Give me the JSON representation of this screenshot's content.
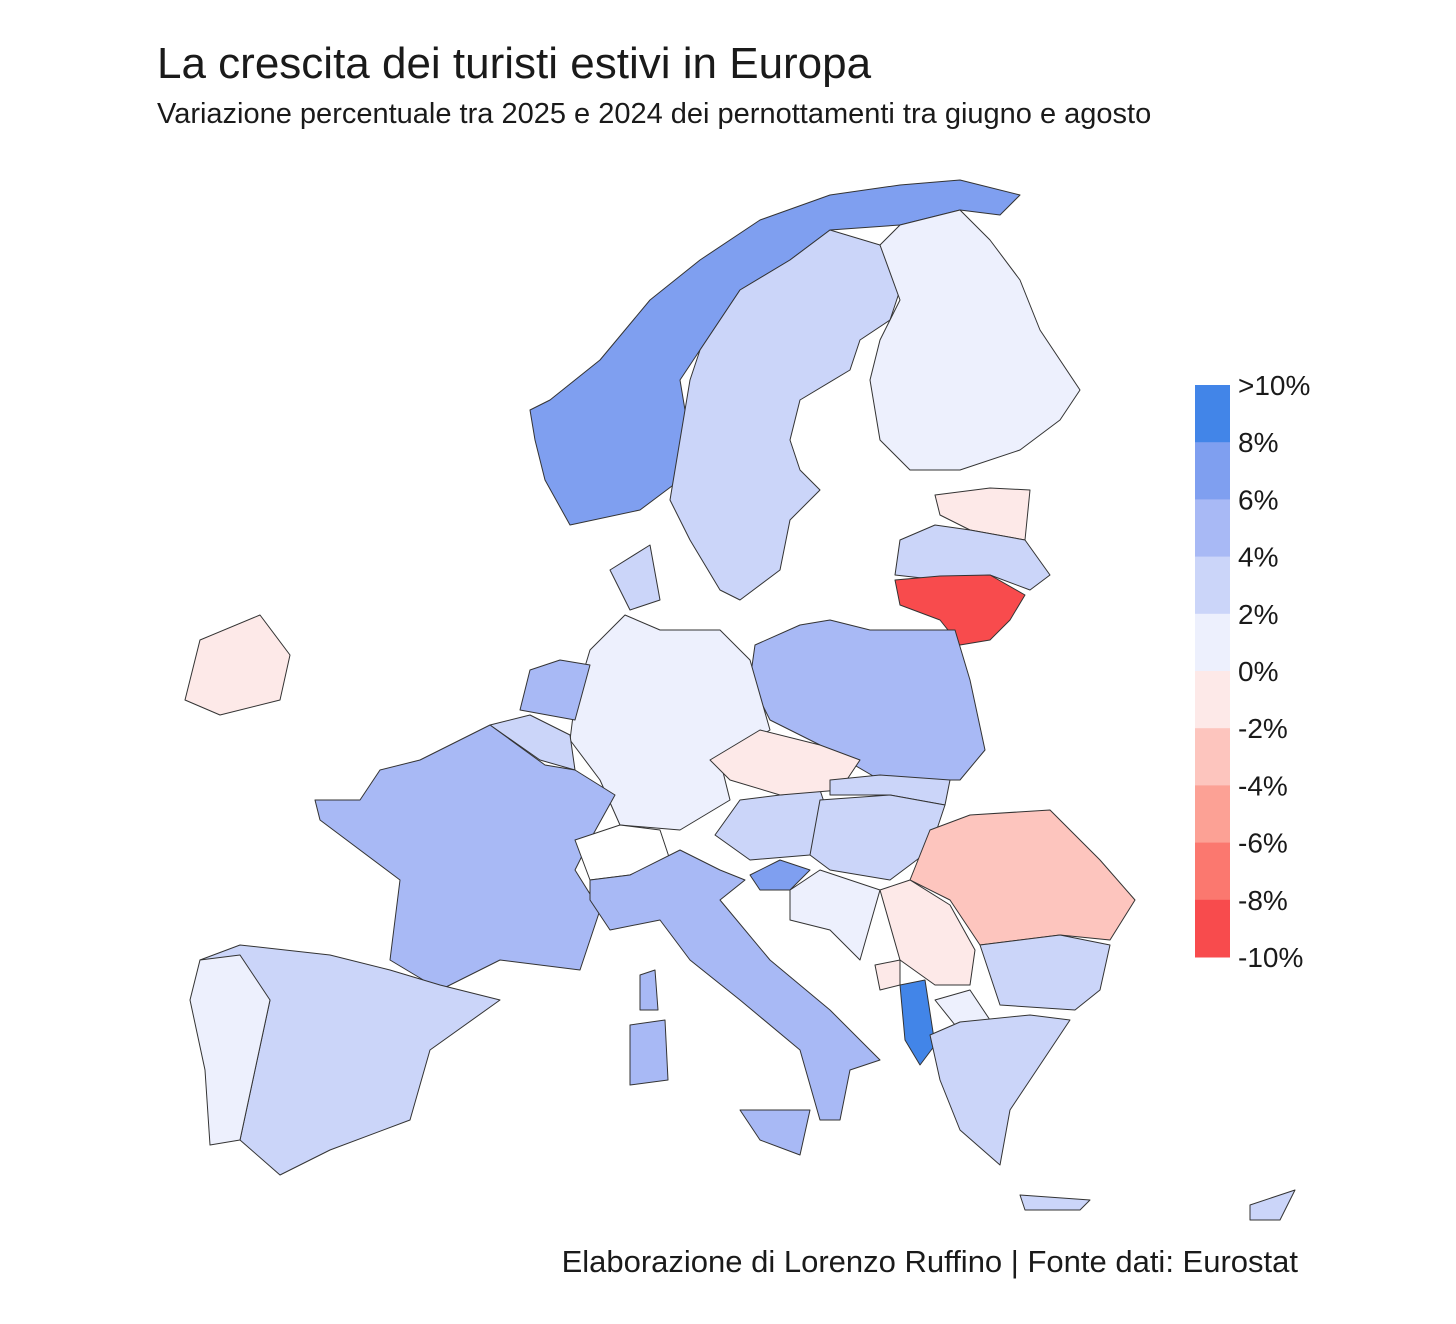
{
  "title": "La crescita dei turisti estivi in Europa",
  "subtitle": "Variazione percentuale tra 2025 e 2024 dei pernottamenti tra giugno e agosto",
  "legend": {
    "labels": [
      ">10%",
      "8%",
      "6%",
      "4%",
      "2%",
      "0%",
      "-2%",
      "-4%",
      "-6%",
      "-8%",
      "-10%"
    ],
    "colors": [
      "#4285e8",
      "#7f9ff0",
      "#a8b9f5",
      "#cbd5f9",
      "#edf0fd",
      "#fde9e8",
      "#fdc5be",
      "#fca195",
      "#fb786f",
      "#f84b4d"
    ]
  },
  "source": "Elaborazione di Lorenzo Ruffino | Fonte dati: Eurostat"
}
